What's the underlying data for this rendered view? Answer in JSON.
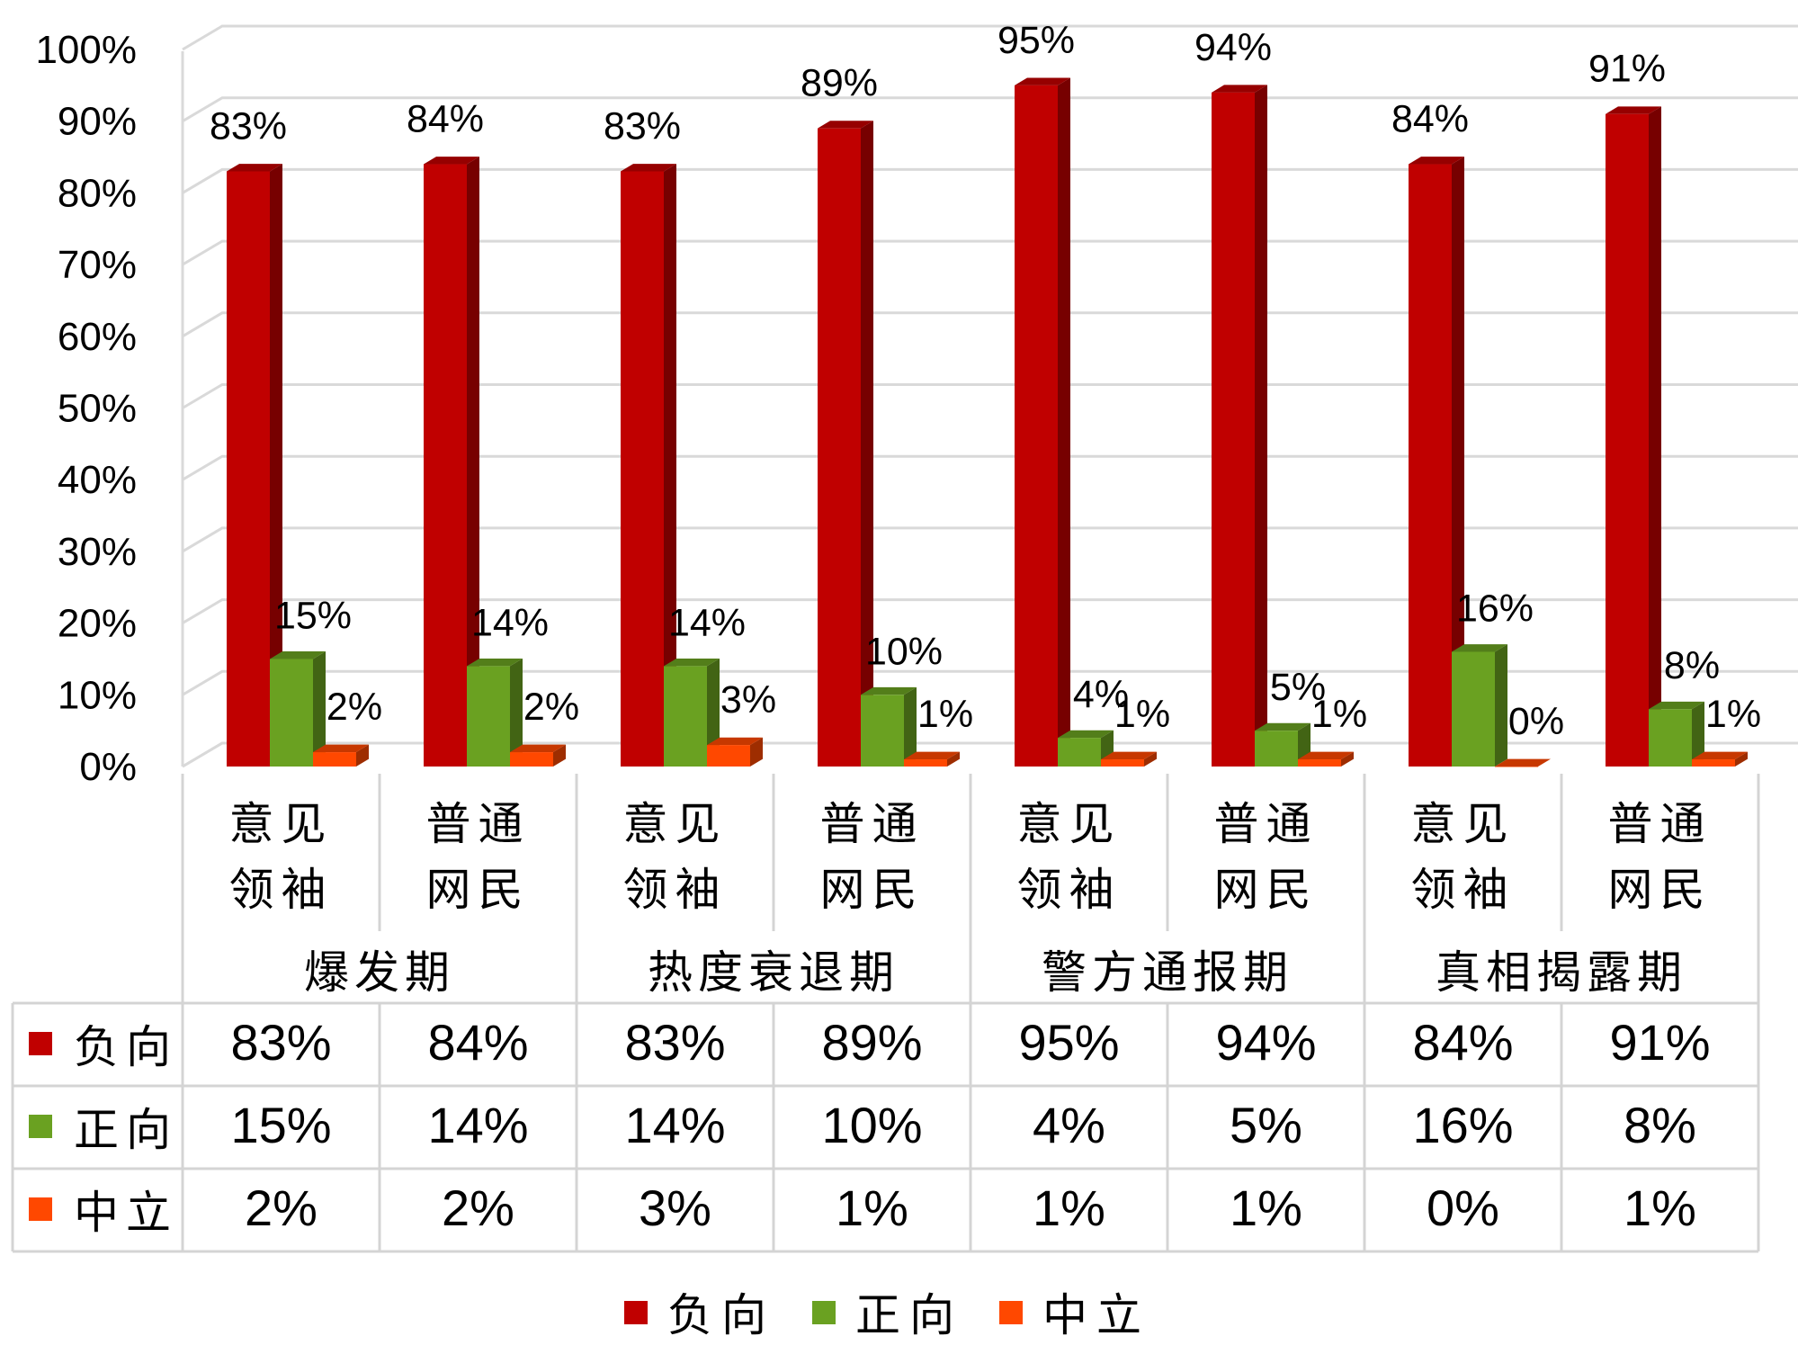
{
  "chart_data": {
    "type": "bar",
    "groups": [
      "爆发期",
      "热度衰退期",
      "警方通报期",
      "真相揭露期"
    ],
    "categories": [
      [
        "意见",
        "领袖"
      ],
      [
        "普通",
        "网民"
      ],
      [
        "意见",
        "领袖"
      ],
      [
        "普通",
        "网民"
      ],
      [
        "意见",
        "领袖"
      ],
      [
        "普通",
        "网民"
      ],
      [
        "意见",
        "领袖"
      ],
      [
        "普通",
        "网民"
      ]
    ],
    "series": [
      {
        "name": "负向",
        "color": "#C00000",
        "values": [
          83,
          84,
          83,
          89,
          95,
          94,
          84,
          91
        ]
      },
      {
        "name": "正向",
        "color": "#6AA121",
        "values": [
          15,
          14,
          14,
          10,
          4,
          5,
          16,
          8
        ]
      },
      {
        "name": "中立",
        "color": "#FF4800",
        "values": [
          2,
          2,
          3,
          1,
          1,
          1,
          0,
          1
        ]
      }
    ],
    "ylim": [
      0,
      100
    ],
    "yticks": [
      "0%",
      "10%",
      "20%",
      "30%",
      "40%",
      "50%",
      "60%",
      "70%",
      "80%",
      "90%",
      "100%"
    ],
    "value_suffix": "%",
    "grid": true,
    "data_table": true,
    "legend_position": "bottom"
  }
}
